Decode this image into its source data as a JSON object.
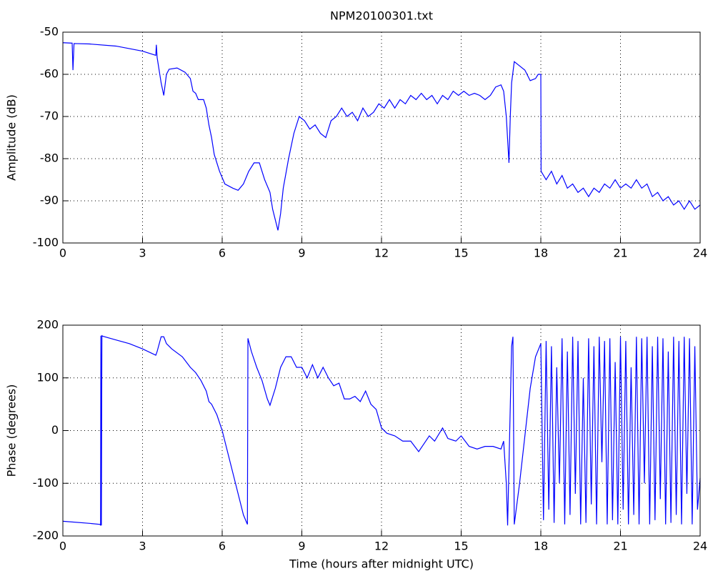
{
  "chart_data": [
    {
      "type": "line",
      "title": "NPM20100301.txt",
      "ylabel": "Amplitude (dB)",
      "x": [
        0,
        0.35,
        0.38,
        0.42,
        1,
        2,
        3,
        3.5,
        3.52,
        3.55,
        3.7,
        3.8,
        3.9,
        4,
        4.3,
        4.6,
        4.8,
        4.9,
        5,
        5.1,
        5.3,
        5.4,
        5.5,
        5.6,
        5.7,
        5.9,
        6.1,
        6.4,
        6.6,
        6.8,
        7,
        7.2,
        7.4,
        7.6,
        7.8,
        7.9,
        8.1,
        8.2,
        8.3,
        8.5,
        8.7,
        8.9,
        9.1,
        9.3,
        9.5,
        9.7,
        9.9,
        10.1,
        10.3,
        10.5,
        10.7,
        10.9,
        11.1,
        11.3,
        11.5,
        11.7,
        11.9,
        12.1,
        12.3,
        12.5,
        12.7,
        12.9,
        13.1,
        13.3,
        13.5,
        13.7,
        13.9,
        14.1,
        14.3,
        14.5,
        14.7,
        14.9,
        15.1,
        15.3,
        15.5,
        15.7,
        15.9,
        16.1,
        16.3,
        16.5,
        16.6,
        16.7,
        16.8,
        16.85,
        16.9,
        17,
        17.2,
        17.4,
        17.6,
        17.8,
        17.9,
        18,
        18.01,
        18.2,
        18.4,
        18.6,
        18.8,
        19,
        19.2,
        19.4,
        19.6,
        19.8,
        20,
        20.2,
        20.4,
        20.6,
        20.8,
        21,
        21.2,
        21.4,
        21.6,
        21.8,
        22,
        22.2,
        22.4,
        22.6,
        22.8,
        23,
        23.2,
        23.4,
        23.6,
        23.8,
        24
      ],
      "series": [
        {
          "color": "#0000ff",
          "values": [
            -52.5,
            -52.6,
            -59,
            -52.7,
            -52.8,
            -53.3,
            -54.5,
            -55.5,
            -53,
            -56,
            -62,
            -65,
            -60,
            -58.8,
            -58.5,
            -59.5,
            -61,
            -64,
            -64.5,
            -66,
            -66,
            -68,
            -72,
            -75,
            -79,
            -83,
            -86,
            -87,
            -87.5,
            -86,
            -83,
            -81,
            -81,
            -85,
            -88,
            -92,
            -97,
            -93,
            -87,
            -80,
            -74,
            -70,
            -71,
            -73,
            -72,
            -74,
            -75,
            -71,
            -70,
            -68,
            -70,
            -69,
            -71,
            -68,
            -70,
            -69,
            -67,
            -68,
            -66,
            -68,
            -66,
            -67,
            -65,
            -66,
            -64.5,
            -66,
            -65,
            -67,
            -65,
            -66,
            -64,
            -65,
            -64,
            -65,
            -64.5,
            -65,
            -66,
            -65,
            -63,
            -62.5,
            -64,
            -70,
            -81,
            -70,
            -62,
            -57,
            -58,
            -59,
            -61.5,
            -61,
            -60,
            -60,
            -83,
            -85,
            -83,
            -86,
            -84,
            -87,
            -86,
            -88,
            -87,
            -89,
            -87,
            -88,
            -86,
            -87,
            -85,
            -87,
            -86,
            -87,
            -85,
            -87,
            -86,
            -89,
            -88,
            -90,
            -89,
            -91,
            -90,
            -92,
            -90,
            -92,
            -91
          ]
        }
      ],
      "xlim": [
        0,
        24
      ],
      "xticks": [
        0,
        3,
        6,
        9,
        12,
        15,
        18,
        21,
        24
      ],
      "ylim": [
        -100,
        -50
      ],
      "yticks": [
        -100,
        -90,
        -80,
        -70,
        -60,
        -50
      ],
      "grid": true
    },
    {
      "type": "line",
      "ylabel": "Phase (degrees)",
      "xlabel": "Time (hours after midnight UTC)",
      "x": [
        0,
        1,
        1.4,
        1.42,
        1.43,
        1.45,
        1.47,
        1.5,
        2,
        2.5,
        3,
        3.5,
        3.55,
        3.7,
        3.8,
        3.9,
        4.1,
        4.5,
        4.8,
        5,
        5.2,
        5.4,
        5.5,
        5.6,
        5.8,
        6,
        6.2,
        6.4,
        6.6,
        6.8,
        6.95,
        6.97,
        7.1,
        7.3,
        7.5,
        7.7,
        7.8,
        8,
        8.2,
        8.4,
        8.6,
        8.8,
        9,
        9.2,
        9.4,
        9.6,
        9.8,
        10,
        10.2,
        10.4,
        10.6,
        10.8,
        11,
        11.2,
        11.4,
        11.6,
        11.8,
        12,
        12.2,
        12.5,
        12.8,
        13.1,
        13.4,
        13.6,
        13.8,
        14,
        14.3,
        14.5,
        14.8,
        15,
        15.3,
        15.6,
        15.9,
        16.2,
        16.5,
        16.6,
        16.7,
        16.75,
        16.9,
        16.95,
        17,
        17.2,
        17.4,
        17.6,
        17.8,
        18,
        18.1,
        18.2,
        18.3,
        18.4,
        18.5,
        18.6,
        18.7,
        18.8,
        18.9,
        19,
        19.1,
        19.2,
        19.3,
        19.4,
        19.5,
        19.6,
        19.7,
        19.8,
        19.9,
        20,
        20.1,
        20.2,
        20.3,
        20.4,
        20.5,
        20.6,
        20.7,
        20.8,
        20.9,
        21,
        21.1,
        21.2,
        21.3,
        21.4,
        21.5,
        21.6,
        21.7,
        21.8,
        21.9,
        22,
        22.1,
        22.2,
        22.3,
        22.4,
        22.5,
        22.6,
        22.7,
        22.8,
        22.9,
        23,
        23.1,
        23.2,
        23.3,
        23.4,
        23.5,
        23.6,
        23.7,
        23.8,
        23.9,
        24
      ],
      "series": [
        {
          "color": "#0000ff",
          "values": [
            -172,
            -176,
            -178,
            -180,
            180,
            -180,
            180,
            179,
            172,
            165,
            155,
            143,
            150,
            178,
            178,
            165,
            155,
            140,
            120,
            110,
            95,
            75,
            55,
            50,
            30,
            0,
            -40,
            -80,
            -120,
            -160,
            -178,
            175,
            150,
            120,
            95,
            60,
            48,
            80,
            120,
            140,
            140,
            120,
            120,
            100,
            125,
            100,
            120,
            100,
            85,
            90,
            60,
            60,
            65,
            55,
            75,
            50,
            40,
            5,
            -5,
            -10,
            -20,
            -20,
            -40,
            -25,
            -10,
            -20,
            5,
            -15,
            -20,
            -10,
            -30,
            -35,
            -30,
            -30,
            -35,
            -20,
            -100,
            -180,
            160,
            178,
            -178,
            -100,
            -10,
            80,
            140,
            165,
            -170,
            170,
            -150,
            160,
            -175,
            120,
            -100,
            175,
            -178,
            150,
            -160,
            178,
            -120,
            170,
            -178,
            100,
            -175,
            175,
            -140,
            160,
            -178,
            178,
            -60,
            170,
            -178,
            175,
            -170,
            130,
            -178,
            178,
            -150,
            170,
            -178,
            120,
            -160,
            178,
            -178,
            175,
            -100,
            178,
            -178,
            160,
            -170,
            178,
            -130,
            175,
            -178,
            150,
            -175,
            178,
            -160,
            170,
            -178,
            178,
            -120,
            175,
            -178,
            160,
            -150,
            -90
          ]
        }
      ],
      "xlim": [
        0,
        24
      ],
      "xticks": [
        0,
        3,
        6,
        9,
        12,
        15,
        18,
        21,
        24
      ],
      "ylim": [
        -200,
        200
      ],
      "yticks": [
        -200,
        -100,
        0,
        100,
        200
      ],
      "grid": true
    }
  ]
}
